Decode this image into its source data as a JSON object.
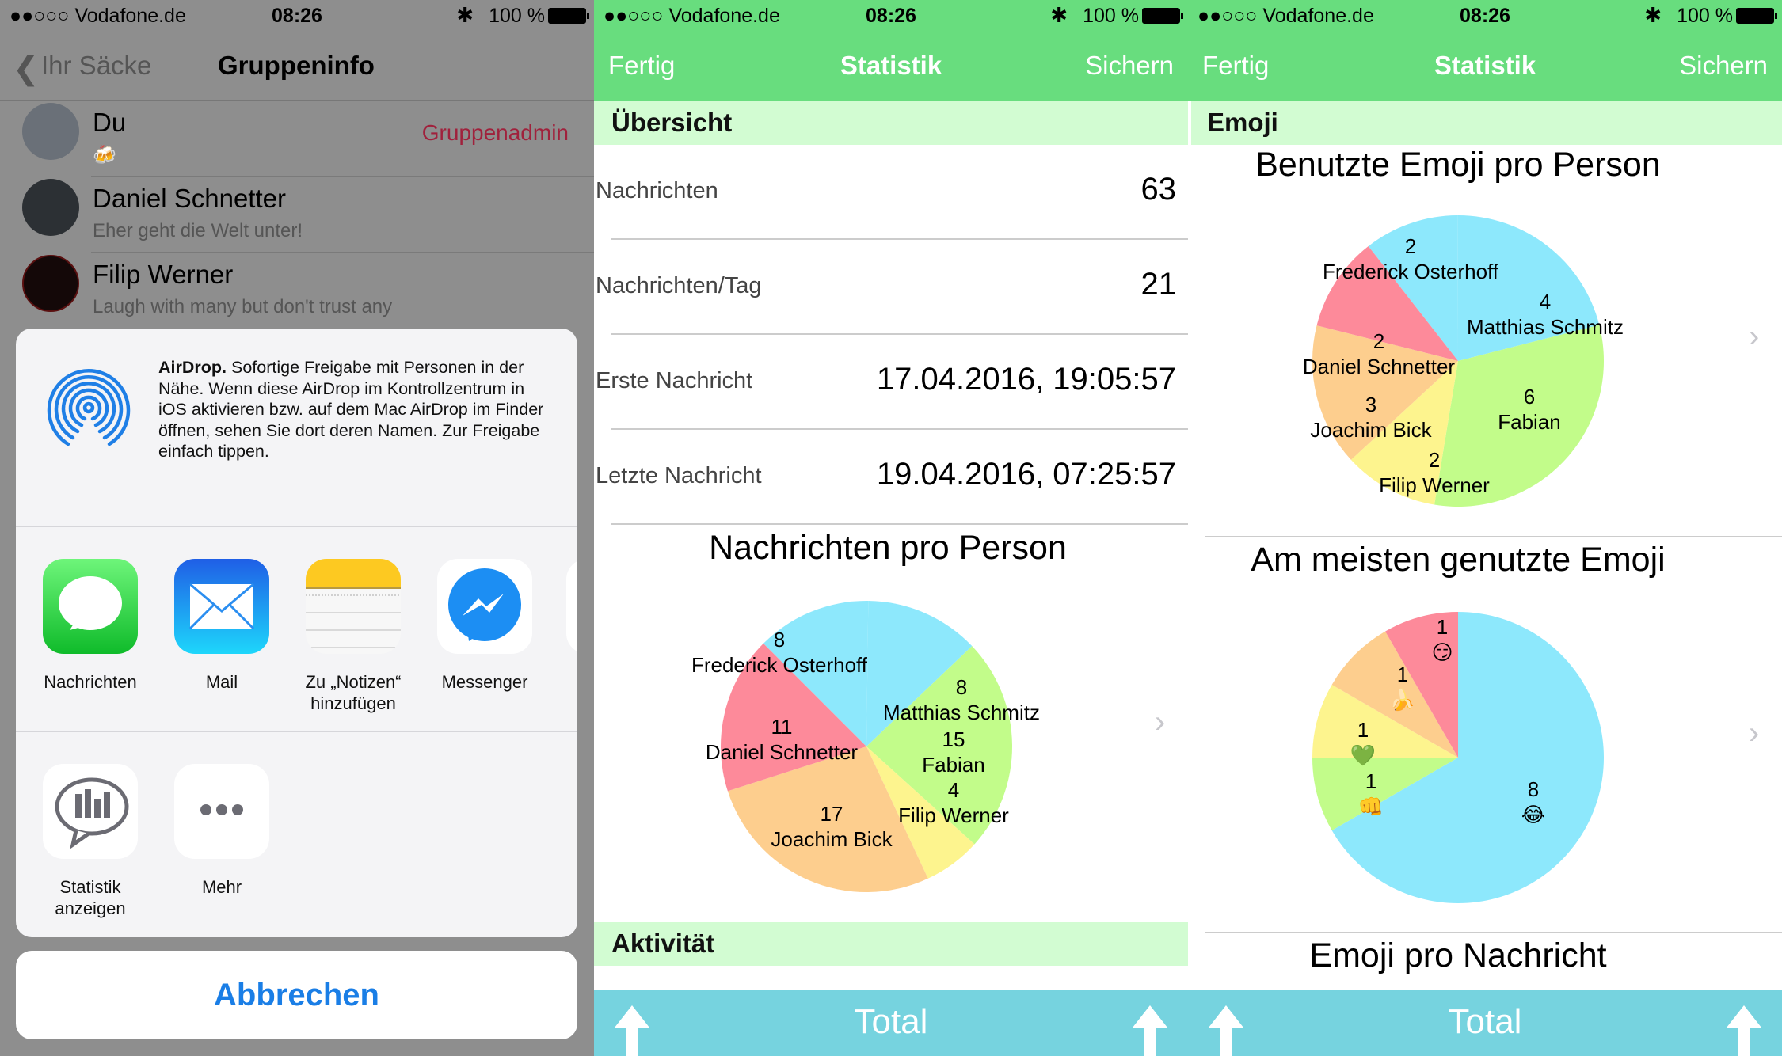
{
  "status": {
    "carrier": "●●○○○ Vodafone.de",
    "time": "08:26",
    "battery": "100 %"
  },
  "left": {
    "nav": {
      "back_label": "Ihr Säcke",
      "title": "Gruppeninfo"
    },
    "members": [
      {
        "name": "Du",
        "sub": "🍻",
        "badge": "Gruppenadmin"
      },
      {
        "name": "Daniel Schnetter",
        "sub": "Eher geht die Welt unter!"
      },
      {
        "name": "Filip Werner",
        "sub": "Laugh with many but don't trust any"
      }
    ],
    "share_sheet": {
      "airdrop_title": "AirDrop.",
      "airdrop_text": " Sofortige Freigabe mit Personen in der Nähe. Wenn diese AirDrop im Kontrollzentrum in iOS aktivieren bzw. auf dem Mac AirDrop im Finder öffnen, sehen Sie dort deren Namen. Zur Freigabe einfach tippen.",
      "apps": [
        {
          "label": "Nachrichten",
          "icon": "messages-icon"
        },
        {
          "label": "Mail",
          "icon": "mail-icon"
        },
        {
          "label": "Zu „Notizen“ hinzufügen",
          "icon": "notes-icon"
        },
        {
          "label": "Messenger",
          "icon": "messenger-icon"
        }
      ],
      "actions": [
        {
          "label": "Statistik anzeigen",
          "icon": "statistics-icon"
        },
        {
          "label": "Mehr",
          "icon": "more-icon"
        }
      ],
      "cancel_label": "Abbrechen"
    }
  },
  "middle": {
    "nav": {
      "left": "Fertig",
      "title": "Statistik",
      "right": "Sichern"
    },
    "section_overview": "Übersicht",
    "rows": [
      {
        "label": "Nachrichten",
        "value": "63"
      },
      {
        "label": "Nachrichten/Tag",
        "value": "21"
      },
      {
        "label": "Erste Nachricht",
        "value": "17.04.2016, 19:05:57"
      },
      {
        "label": "Letzte Nachricht",
        "value": "19.04.2016, 07:25:57"
      }
    ],
    "chart_title": "Nachrichten pro Person",
    "section_activity": "Aktivität",
    "bottom_label": "Total"
  },
  "right": {
    "nav": {
      "left": "Fertig",
      "title": "Statistik",
      "right": "Sichern"
    },
    "section": "Emoji",
    "chart1_title": "Benutzte Emoji pro Person",
    "chart2_title": "Am meisten genutzte Emoji",
    "chart3_title": "Emoji pro Nachricht",
    "bottom_label": "Total"
  },
  "colors": {
    "nav_green": "#68DD7E",
    "section_green": "#D2FCD2",
    "bottom_bar": "#76D3DF",
    "admin_red": "#a0213c",
    "link_blue": "#1a7ee6"
  },
  "chart_data": [
    {
      "type": "pie",
      "title": "Nachrichten pro Person",
      "categories": [
        "Frederick Osterhoff",
        "Matthias Schmitz",
        "Fabian",
        "Filip Werner",
        "Joachim Bick",
        "Daniel Schnetter"
      ],
      "values": [
        8,
        8,
        15,
        4,
        17,
        11
      ],
      "colors": [
        "#8DE8FC",
        "#8DE8FC",
        "#C2FC8A",
        "#FDF48E",
        "#FDCE8E",
        "#FD8A9A"
      ]
    },
    {
      "type": "pie",
      "title": "Benutzte Emoji pro Person",
      "categories": [
        "Frederick Osterhoff",
        "Matthias Schmitz",
        "Fabian",
        "Filip Werner",
        "Joachim Bick",
        "Daniel Schnetter"
      ],
      "values": [
        2,
        4,
        6,
        2,
        3,
        2
      ],
      "colors": [
        "#8DE8FC",
        "#8DE8FC",
        "#C2FC8A",
        "#FDF48E",
        "#FDCE8E",
        "#FD8A9A"
      ]
    },
    {
      "type": "pie",
      "title": "Am meisten genutzte Emoji",
      "categories": [
        "😂",
        "👊",
        "💚",
        "🍌",
        "😏"
      ],
      "values": [
        8,
        1,
        1,
        1,
        1
      ],
      "colors": [
        "#8DE8FC",
        "#C2FC8A",
        "#FDF48E",
        "#FDCE8E",
        "#FD8A9A"
      ]
    }
  ]
}
